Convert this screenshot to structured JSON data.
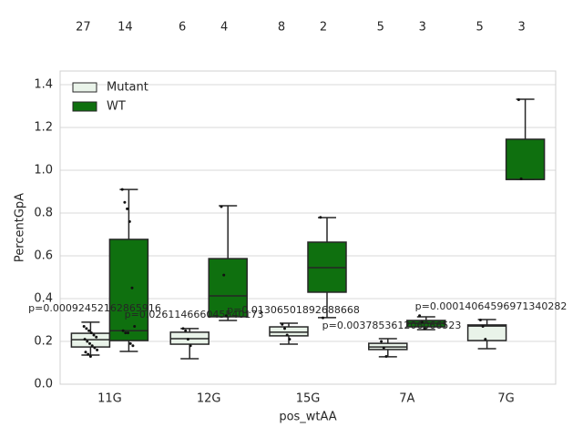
{
  "chart_data": {
    "type": "box",
    "x_label": "pos_wtAA",
    "y_label": "PercentGpA",
    "categories": [
      "11G",
      "12G",
      "15G",
      "7A",
      "7G"
    ],
    "ylim": [
      0,
      1.464
    ],
    "yticks": [
      {
        "value": 0,
        "label": "0.0"
      },
      0.2,
      0.4,
      0.6,
      0.8,
      {
        "value": 1,
        "label": "1.0"
      },
      1.2,
      1.4
    ],
    "grid": true,
    "legend": "upper left",
    "series": [
      {
        "name": "Mutant",
        "color": "#e9f3e9",
        "boxes": [
          {
            "min": 0.136,
            "q1": 0.174,
            "median": 0.208,
            "q3": 0.238,
            "max": 0.29,
            "points": [
              0.27,
              0.26,
              0.25,
              0.24,
              0.23,
              0.22,
              0.21,
              0.2,
              0.19,
              0.18,
              0.17,
              0.16,
              0.15,
              0.14,
              0.13
            ]
          },
          {
            "min": 0.119,
            "q1": 0.187,
            "median": 0.213,
            "q3": 0.243,
            "max": 0.26,
            "points": [
              0.26,
              0.25,
              0.21,
              0.18
            ]
          },
          {
            "min": 0.187,
            "q1": 0.226,
            "median": 0.243,
            "q3": 0.268,
            "max": 0.285,
            "points": [
              0.28,
              0.26,
              0.23,
              0.21
            ]
          },
          {
            "min": 0.128,
            "q1": 0.162,
            "median": 0.174,
            "q3": 0.191,
            "max": 0.213,
            "points": [
              0.2,
              0.17,
              0.13
            ]
          },
          {
            "min": 0.166,
            "q1": 0.204,
            "median": 0.272,
            "q3": 0.277,
            "max": 0.302,
            "points": [
              0.3,
              0.27,
              0.21
            ]
          }
        ],
        "counts": [
          27,
          6,
          8,
          5,
          5
        ]
      },
      {
        "name": "WT",
        "color": "#0f700f",
        "boxes": [
          {
            "min": 0.153,
            "q1": 0.204,
            "median": 0.25,
            "q3": 0.677,
            "max": 0.91,
            "points": [
              0.91,
              0.85,
              0.82,
              0.76,
              0.45,
              0.27,
              0.25,
              0.24,
              0.24,
              0.19,
              0.18
            ]
          },
          {
            "min": 0.298,
            "q1": 0.315,
            "median": 0.413,
            "q3": 0.587,
            "max": 0.834,
            "points": [
              0.83,
              0.51,
              0.32
            ]
          },
          {
            "min": 0.311,
            "q1": 0.43,
            "median": 0.545,
            "q3": 0.664,
            "max": 0.779,
            "points": [
              0.78,
              0.31
            ]
          },
          {
            "min": 0.255,
            "q1": 0.268,
            "median": 0.285,
            "q3": 0.298,
            "max": 0.315,
            "points": [
              0.32,
              0.29,
              0.26
            ]
          },
          {
            "min": 0.957,
            "q1": 0.957,
            "median": 0.957,
            "q3": 1.145,
            "max": 1.332,
            "points": [
              1.33,
              0.96
            ]
          }
        ],
        "counts": [
          14,
          4,
          2,
          3,
          3
        ]
      }
    ],
    "annotations": [
      "p=0.00092452162865916",
      "p=0.026114666045540173",
      "p=0.01306501892688668",
      "p=0.003785361206066523",
      "p=0.00014064596971340282"
    ]
  }
}
